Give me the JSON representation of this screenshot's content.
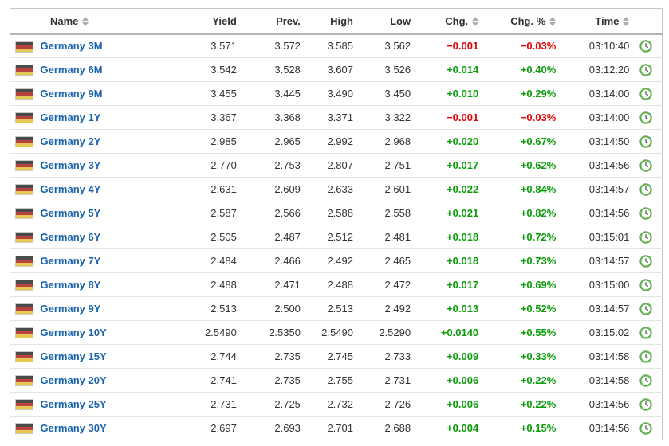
{
  "table": {
    "columns": [
      {
        "id": "name",
        "label": "Name",
        "sortable": true,
        "align": "left"
      },
      {
        "id": "yield",
        "label": "Yield",
        "sortable": false,
        "align": "right"
      },
      {
        "id": "prev",
        "label": "Prev.",
        "sortable": false,
        "align": "right"
      },
      {
        "id": "high",
        "label": "High",
        "sortable": false,
        "align": "right"
      },
      {
        "id": "low",
        "label": "Low",
        "sortable": false,
        "align": "right"
      },
      {
        "id": "chg",
        "label": "Chg.",
        "sortable": true,
        "align": "right"
      },
      {
        "id": "chg_pct",
        "label": "Chg. %",
        "sortable": true,
        "align": "right"
      },
      {
        "id": "time",
        "label": "Time",
        "sortable": true,
        "align": "right"
      },
      {
        "id": "clock",
        "label": "",
        "sortable": false,
        "align": "center"
      }
    ],
    "rows": [
      {
        "name": "Germany 3M",
        "yield": "3.571",
        "prev": "3.572",
        "high": "3.585",
        "low": "3.562",
        "chg": "−0.001",
        "chg_pct": "−0.03%",
        "time": "03:10:40",
        "direction": "down"
      },
      {
        "name": "Germany 6M",
        "yield": "3.542",
        "prev": "3.528",
        "high": "3.607",
        "low": "3.526",
        "chg": "+0.014",
        "chg_pct": "+0.40%",
        "time": "03:12:20",
        "direction": "up"
      },
      {
        "name": "Germany 9M",
        "yield": "3.455",
        "prev": "3.445",
        "high": "3.490",
        "low": "3.450",
        "chg": "+0.010",
        "chg_pct": "+0.29%",
        "time": "03:14:00",
        "direction": "up"
      },
      {
        "name": "Germany 1Y",
        "yield": "3.367",
        "prev": "3.368",
        "high": "3.371",
        "low": "3.322",
        "chg": "−0.001",
        "chg_pct": "−0.03%",
        "time": "03:14:00",
        "direction": "down"
      },
      {
        "name": "Germany 2Y",
        "yield": "2.985",
        "prev": "2.965",
        "high": "2.992",
        "low": "2.968",
        "chg": "+0.020",
        "chg_pct": "+0.67%",
        "time": "03:14:50",
        "direction": "up"
      },
      {
        "name": "Germany 3Y",
        "yield": "2.770",
        "prev": "2.753",
        "high": "2.807",
        "low": "2.751",
        "chg": "+0.017",
        "chg_pct": "+0.62%",
        "time": "03:14:56",
        "direction": "up"
      },
      {
        "name": "Germany 4Y",
        "yield": "2.631",
        "prev": "2.609",
        "high": "2.633",
        "low": "2.601",
        "chg": "+0.022",
        "chg_pct": "+0.84%",
        "time": "03:14:57",
        "direction": "up"
      },
      {
        "name": "Germany 5Y",
        "yield": "2.587",
        "prev": "2.566",
        "high": "2.588",
        "low": "2.558",
        "chg": "+0.021",
        "chg_pct": "+0.82%",
        "time": "03:14:56",
        "direction": "up"
      },
      {
        "name": "Germany 6Y",
        "yield": "2.505",
        "prev": "2.487",
        "high": "2.512",
        "low": "2.481",
        "chg": "+0.018",
        "chg_pct": "+0.72%",
        "time": "03:15:01",
        "direction": "up"
      },
      {
        "name": "Germany 7Y",
        "yield": "2.484",
        "prev": "2.466",
        "high": "2.492",
        "low": "2.465",
        "chg": "+0.018",
        "chg_pct": "+0.73%",
        "time": "03:14:57",
        "direction": "up"
      },
      {
        "name": "Germany 8Y",
        "yield": "2.488",
        "prev": "2.471",
        "high": "2.488",
        "low": "2.472",
        "chg": "+0.017",
        "chg_pct": "+0.69%",
        "time": "03:15:00",
        "direction": "up"
      },
      {
        "name": "Germany 9Y",
        "yield": "2.513",
        "prev": "2.500",
        "high": "2.513",
        "low": "2.492",
        "chg": "+0.013",
        "chg_pct": "+0.52%",
        "time": "03:14:57",
        "direction": "up"
      },
      {
        "name": "Germany 10Y",
        "yield": "2.5490",
        "prev": "2.5350",
        "high": "2.5490",
        "low": "2.5290",
        "chg": "+0.0140",
        "chg_pct": "+0.55%",
        "time": "03:15:02",
        "direction": "up"
      },
      {
        "name": "Germany 15Y",
        "yield": "2.744",
        "prev": "2.735",
        "high": "2.745",
        "low": "2.733",
        "chg": "+0.009",
        "chg_pct": "+0.33%",
        "time": "03:14:58",
        "direction": "up"
      },
      {
        "name": "Germany 20Y",
        "yield": "2.741",
        "prev": "2.735",
        "high": "2.755",
        "low": "2.731",
        "chg": "+0.006",
        "chg_pct": "+0.22%",
        "time": "03:14:58",
        "direction": "up"
      },
      {
        "name": "Germany 25Y",
        "yield": "2.731",
        "prev": "2.725",
        "high": "2.732",
        "low": "2.726",
        "chg": "+0.006",
        "chg_pct": "+0.22%",
        "time": "03:14:56",
        "direction": "up"
      },
      {
        "name": "Germany 30Y",
        "yield": "2.697",
        "prev": "2.693",
        "high": "2.701",
        "low": "2.688",
        "chg": "+0.004",
        "chg_pct": "+0.15%",
        "time": "03:14:56",
        "direction": "up"
      }
    ]
  },
  "icons": {
    "flag": "germany-flag",
    "clock": "clock",
    "sort": "sort-arrows"
  },
  "colors": {
    "up": "#0a9c0a",
    "down": "#e30505",
    "link": "#1a64ad",
    "header_text": "#333333",
    "value_text": "#333333",
    "clock_ring": "#63b14c",
    "clock_hands": "#555555",
    "flag_black": "#4a4a4a",
    "flag_red": "#b8423e",
    "flag_gold": "#e5c954"
  }
}
